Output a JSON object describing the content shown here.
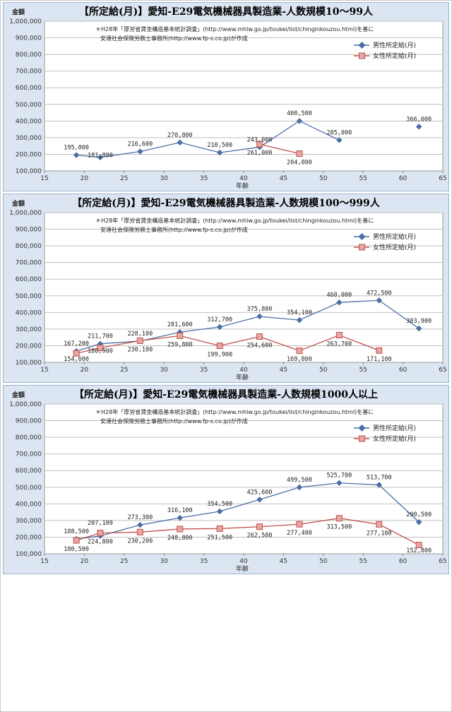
{
  "source_note": {
    "line1": "＊H28年「厚労省賃金構造基本統計調査」(http://www.mhlw.go.jp/toukei/list/chinginkouzou.html)を基に",
    "line2": "安達社会保険労務士事務所(http://www.fp-s.co.jp)が作成"
  },
  "colors": {
    "male": "#4a6fa5",
    "female": "#c0504d",
    "female_fill": "#e6a7a3",
    "grid": "#bfbfbf",
    "plot_bg": "#ffffff"
  },
  "chart_data": [
    {
      "type": "line",
      "title": "【所定給(月)】愛知-E29電気機械器具製造業-人数規模10～99人",
      "ylabel": "金額",
      "xlabel": "年齢",
      "xlim": [
        15,
        65
      ],
      "ylim": [
        100000,
        1000000
      ],
      "xticks": [
        15,
        20,
        25,
        30,
        35,
        40,
        45,
        50,
        55,
        60,
        65
      ],
      "yticks": [
        100000,
        200000,
        300000,
        400000,
        500000,
        600000,
        700000,
        800000,
        900000,
        1000000
      ],
      "ytick_labels": [
        "100,000",
        "200,000",
        "300,000",
        "400,000",
        "500,000",
        "600,000",
        "700,000",
        "800,000",
        "900,000",
        "1,000,000"
      ],
      "legend_position": "top-right",
      "series": [
        {
          "name": "男性所定給(月)",
          "points": [
            [
              19,
              195000
            ],
            [
              22,
              181800
            ],
            [
              27,
              216600
            ],
            [
              32,
              270800
            ],
            [
              37,
              210500
            ],
            [
              42,
              243000
            ],
            [
              47,
              400500
            ],
            [
              52,
              285000
            ],
            [
              62,
              366000
            ]
          ],
          "labels": [
            "195,000",
            "181,800",
            "216,600",
            "270,800",
            "210,500",
            "243,000",
            "400,500",
            "285,000",
            "366,000"
          ],
          "segments": [
            [
              0,
              1,
              2,
              3,
              4,
              5,
              6,
              7
            ],
            [
              8
            ]
          ]
        },
        {
          "name": "女性所定給(月)",
          "points": [
            [
              42,
              261000
            ],
            [
              47,
              204000
            ]
          ],
          "labels": [
            "261,000",
            "204,000"
          ],
          "segments": [
            [
              0,
              1
            ]
          ]
        }
      ]
    },
    {
      "type": "line",
      "title": "【所定給(月)】愛知-E29電気機械器具製造業-人数規模100～999人",
      "ylabel": "金額",
      "xlabel": "年齢",
      "xlim": [
        15,
        65
      ],
      "ylim": [
        100000,
        1000000
      ],
      "xticks": [
        15,
        20,
        25,
        30,
        35,
        40,
        45,
        50,
        55,
        60,
        65
      ],
      "yticks": [
        100000,
        200000,
        300000,
        400000,
        500000,
        600000,
        700000,
        800000,
        900000,
        1000000
      ],
      "ytick_labels": [
        "100,000",
        "200,000",
        "300,000",
        "400,000",
        "500,000",
        "600,000",
        "700,000",
        "800,000",
        "900,000",
        "1,000,000"
      ],
      "legend_position": "top-right",
      "series": [
        {
          "name": "男性所定給(月)",
          "points": [
            [
              19,
              167200
            ],
            [
              22,
              211700
            ],
            [
              27,
              228100
            ],
            [
              32,
              281600
            ],
            [
              37,
              312700
            ],
            [
              42,
              375800
            ],
            [
              47,
              354100
            ],
            [
              52,
              460000
            ],
            [
              57,
              472500
            ],
            [
              62,
              303900
            ]
          ],
          "labels": [
            "167,200",
            "211,700",
            "228,100",
            "281,600",
            "312,700",
            "375,800",
            "354,100",
            "460,000",
            "472,500",
            "303,900"
          ],
          "segments": [
            [
              0,
              1,
              2,
              3,
              4,
              5,
              6,
              7,
              8,
              9
            ]
          ]
        },
        {
          "name": "女性所定給(月)",
          "points": [
            [
              19,
              154600
            ],
            [
              22,
              186900
            ],
            [
              27,
              230100
            ],
            [
              32,
              259800
            ],
            [
              37,
              199900
            ],
            [
              42,
              254600
            ],
            [
              47,
              169800
            ],
            [
              52,
              263700
            ],
            [
              57,
              171100
            ]
          ],
          "labels": [
            "154,600",
            "186,900",
            "230,100",
            "259,800",
            "199,900",
            "254,600",
            "169,800",
            "263,700",
            "171,100"
          ],
          "segments": [
            [
              0,
              1,
              2,
              3,
              4,
              5,
              6,
              7,
              8
            ]
          ]
        }
      ]
    },
    {
      "type": "line",
      "title": "【所定給(月)】愛知-E29電気機械器具製造業-人数規模1000人以上",
      "ylabel": "金額",
      "xlabel": "年齢",
      "xlim": [
        15,
        65
      ],
      "ylim": [
        100000,
        1000000
      ],
      "xticks": [
        15,
        20,
        25,
        30,
        35,
        40,
        45,
        50,
        55,
        60,
        65
      ],
      "yticks": [
        100000,
        200000,
        300000,
        400000,
        500000,
        600000,
        700000,
        800000,
        900000,
        1000000
      ],
      "ytick_labels": [
        "100,000",
        "200,000",
        "300,000",
        "400,000",
        "500,000",
        "600,000",
        "700,000",
        "800,000",
        "900,000",
        "1,000,000"
      ],
      "legend_position": "top-right",
      "series": [
        {
          "name": "男性所定給(月)",
          "points": [
            [
              19,
              188500
            ],
            [
              22,
              207100
            ],
            [
              27,
              273300
            ],
            [
              32,
              316100
            ],
            [
              37,
              354500
            ],
            [
              42,
              425600
            ],
            [
              47,
              499500
            ],
            [
              52,
              525700
            ],
            [
              57,
              513700
            ],
            [
              62,
              290500
            ]
          ],
          "labels": [
            "188,500",
            "207,100",
            "273,300",
            "316,100",
            "354,500",
            "425,600",
            "499,500",
            "525,700",
            "513,700",
            "290,500"
          ],
          "segments": [
            [
              0,
              1,
              2,
              3,
              4,
              5,
              6,
              7,
              8,
              9
            ]
          ]
        },
        {
          "name": "女性所定給(月)",
          "points": [
            [
              19,
              180500
            ],
            [
              22,
              224800
            ],
            [
              27,
              230200
            ],
            [
              32,
              248800
            ],
            [
              37,
              251500
            ],
            [
              42,
              262500
            ],
            [
              47,
              277400
            ],
            [
              52,
              313500
            ],
            [
              57,
              277100
            ],
            [
              62,
              152800
            ]
          ],
          "labels": [
            "180,500",
            "224,800",
            "230,200",
            "248,800",
            "251,500",
            "262,500",
            "277,400",
            "313,500",
            "277,100",
            "152,800"
          ],
          "segments": [
            [
              0,
              1,
              2,
              3,
              4,
              5,
              6,
              7,
              8,
              9
            ]
          ]
        }
      ]
    }
  ]
}
